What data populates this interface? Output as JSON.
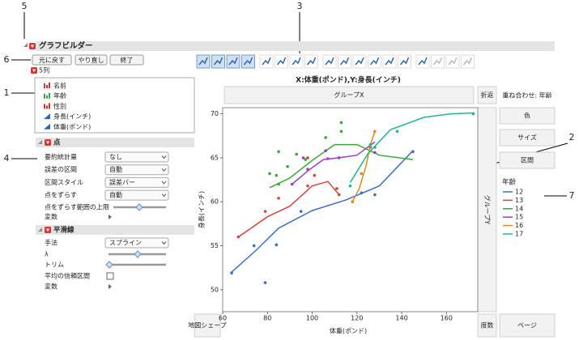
{
  "callouts": [
    "5",
    "3",
    "6",
    "1",
    "4",
    "2",
    "7"
  ],
  "window": {
    "title": "グラフビルダー",
    "buttons": [
      "元に戻す",
      "やり直し",
      "終了"
    ]
  },
  "columns": {
    "header": "5列",
    "items": [
      "名前",
      "年齢",
      "性別",
      "身長(インチ)",
      "体重(ポンド)"
    ]
  },
  "points_panel": {
    "title": "点",
    "rows": [
      [
        "要約統計量",
        "なし"
      ],
      [
        "誤差の区間",
        "自動"
      ],
      [
        "区間スタイル",
        "誤差バー"
      ],
      [
        "点をずらす",
        "自動"
      ]
    ],
    "jitter_limit": "点をずらす範囲の上限",
    "variables": "変数"
  },
  "smoother_panel": {
    "title": "平滑線",
    "method_label": "手法",
    "method": "スプライン",
    "lambda": "λ",
    "trim": "トリム",
    "ci": "平均の信頼区間",
    "variables": "変数"
  },
  "zones": {
    "group_x": "グループX",
    "wrap": "折返",
    "overlay": "重ね合わせ: 年齢",
    "color": "色",
    "size": "サイズ",
    "interval": "区間",
    "group_y": "グループY",
    "freq": "度数",
    "page": "ページ",
    "map": "地図シェープ"
  },
  "chart_data": {
    "type": "scatter",
    "title": "X:体重(ポンド),Y:身長(インチ)",
    "x_label": "体重(ポンド)",
    "y_label": "身長(インチ)",
    "legend_title": "年齢",
    "xlim": [
      60,
      174
    ],
    "ylim": [
      47.5,
      70.7
    ],
    "xticks": [
      60,
      80,
      100,
      120,
      140,
      160
    ],
    "yticks": [
      50,
      55,
      60,
      65,
      70
    ],
    "grid": false,
    "series": [
      {
        "name": "12",
        "color": "#3b6fc7",
        "x": [
          64,
          74,
          79,
          84,
          95,
          122,
          128,
          145
        ],
        "values": [
          51.9,
          55,
          50.8,
          55.1,
          58.9,
          61,
          60.8,
          65.7
        ],
        "fit_x": [
          64,
          75,
          85,
          100,
          115,
          130,
          145
        ],
        "fit_values": [
          52,
          54.5,
          57,
          59,
          60.2,
          61.8,
          65.8
        ]
      },
      {
        "name": "13",
        "color": "#d2453e",
        "x": [
          67,
          79,
          85,
          98,
          98,
          101,
          107,
          111,
          112
        ],
        "values": [
          56,
          58.9,
          60.4,
          61.8,
          65,
          63,
          64.9,
          61.5,
          60.8
        ],
        "fit_x": [
          67,
          80,
          90,
          100,
          107,
          112
        ],
        "fit_values": [
          56,
          58.3,
          59.5,
          61.8,
          62.3,
          60.8
        ]
      },
      {
        "name": "14",
        "color": "#3aa53a",
        "x": [
          81,
          84,
          85,
          85,
          89,
          93,
          97,
          106,
          113,
          113,
          128
        ],
        "values": [
          63.2,
          63,
          65.7,
          62,
          64,
          65.4,
          64.8,
          67.3,
          69,
          68,
          66.2
        ],
        "fit_x": [
          81,
          90,
          100,
          110,
          120,
          130,
          145
        ],
        "fit_values": [
          61.6,
          62.7,
          64.7,
          66.5,
          66.5,
          65.3,
          64.8
        ]
      },
      {
        "name": "15",
        "color": "#9b3fc1",
        "x": [
          91,
          96,
          98,
          106,
          112,
          126,
          128
        ],
        "values": [
          62,
          65,
          63.7,
          65.8,
          65,
          66.2,
          65.6
        ],
        "fit_x": [
          91,
          98,
          105,
          112,
          120,
          128
        ],
        "fit_values": [
          62,
          63.5,
          64.8,
          65,
          65.3,
          66.8
        ]
      },
      {
        "name": "16",
        "color": "#e08a1a",
        "x": [
          118,
          122,
          128
        ],
        "values": [
          60,
          63.2,
          68
        ],
        "fit_x": [
          118,
          121,
          124,
          126,
          128
        ],
        "fit_values": [
          60,
          61.5,
          64,
          66.5,
          68
        ]
      },
      {
        "name": "17",
        "color": "#22b58f",
        "x": [
          117,
          126,
          138,
          172
        ],
        "values": [
          61.8,
          66.5,
          68,
          70
        ],
        "fit_x": [
          117,
          125,
          135,
          150,
          162,
          172
        ],
        "fit_values": [
          62.2,
          65.5,
          68.2,
          69.6,
          70,
          70.1
        ]
      }
    ]
  }
}
